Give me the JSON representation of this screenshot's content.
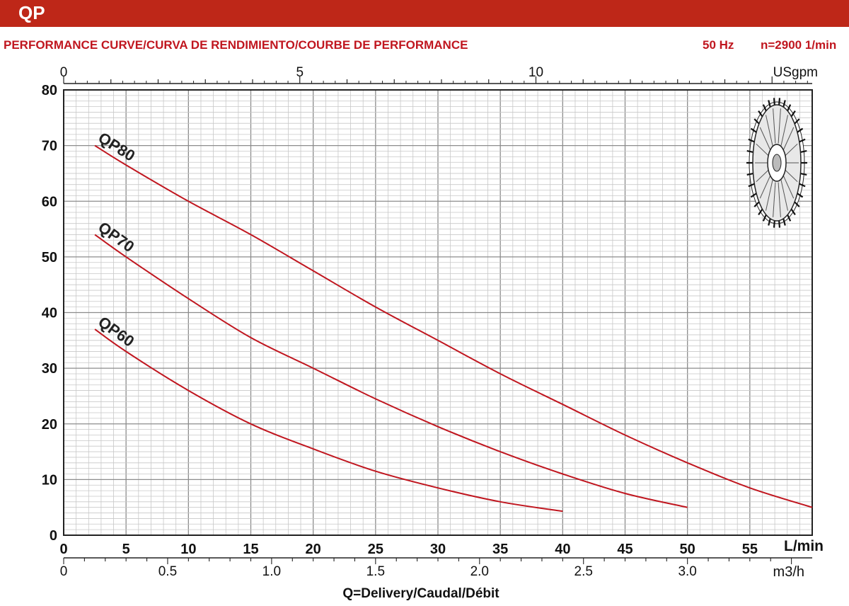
{
  "header": {
    "title": "QP",
    "subtitle": "PERFORMANCE CURVE/CURVA DE RENDIMIENTO/COURBE DE PERFORMANCE",
    "frequency": "50 Hz",
    "speed": "n=2900 1/min"
  },
  "colors": {
    "banner": "#be2718",
    "curve": "#c0161f",
    "grid": "#9a9a9a",
    "text": "#111111"
  },
  "icons": {
    "impeller": "impeller-icon"
  },
  "chart_data": {
    "type": "line",
    "x_unit": "L/min",
    "xlim": [
      0,
      60
    ],
    "ylim": [
      0,
      80
    ],
    "x_ticks": [
      0,
      5,
      10,
      15,
      20,
      25,
      30,
      35,
      40,
      45,
      50,
      55
    ],
    "y_ticks": [
      0,
      10,
      20,
      30,
      40,
      50,
      60,
      70,
      80
    ],
    "top_axis": {
      "unit": "USgpm",
      "ticks": [
        0,
        5,
        10
      ]
    },
    "bottom_axis": {
      "unit": "m3/h",
      "ticks": [
        "0",
        "0.5",
        "1.0",
        "1.5",
        "2.0",
        "2.5",
        "3.0"
      ]
    },
    "xlabel": "Q=Delivery/Caudal/Débit",
    "grid": true,
    "series": [
      {
        "name": "QP80",
        "x": [
          2.5,
          5,
          10,
          15,
          20,
          25,
          30,
          35,
          40,
          45,
          50,
          55,
          60
        ],
        "y": [
          70,
          66.5,
          60,
          54,
          47.5,
          41,
          35,
          29,
          23.5,
          18,
          13,
          8.5,
          5
        ]
      },
      {
        "name": "QP70",
        "x": [
          2.5,
          5,
          10,
          15,
          20,
          25,
          30,
          35,
          40,
          45,
          50
        ],
        "y": [
          54,
          50,
          42.5,
          35.5,
          30,
          24.5,
          19.5,
          15,
          11,
          7.5,
          5
        ]
      },
      {
        "name": "QP60",
        "x": [
          2.5,
          5,
          10,
          15,
          20,
          25,
          30,
          35,
          40
        ],
        "y": [
          37,
          33,
          26,
          20,
          15.5,
          11.5,
          8.5,
          6,
          4.3
        ]
      }
    ]
  }
}
